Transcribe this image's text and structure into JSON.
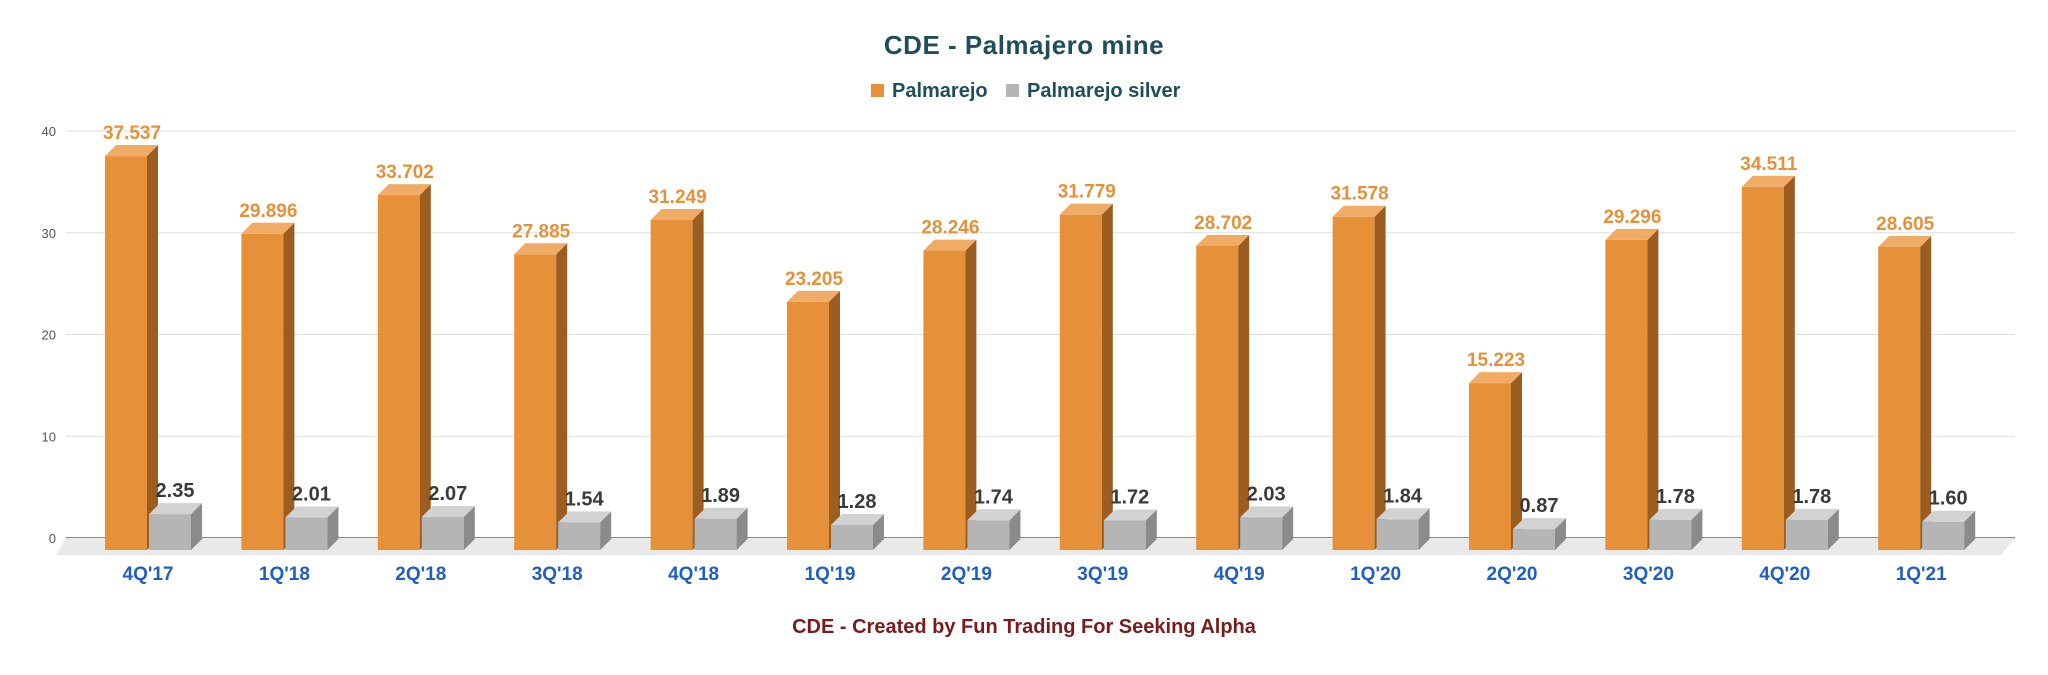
{
  "chart_data": {
    "type": "bar",
    "title": "CDE - Palmajero mine",
    "footer": "CDE - Created by Fun Trading  For Seeking Alpha",
    "categories": [
      "4Q'17",
      "1Q'18",
      "2Q'18",
      "3Q'18",
      "4Q'18",
      "1Q'19",
      "2Q'19",
      "3Q'19",
      "4Q'19",
      "1Q'20",
      "2Q'20",
      "3Q'20",
      "4Q'20",
      "1Q'21"
    ],
    "series": [
      {
        "name": "Palmarejo",
        "color": "#e6913a",
        "values": [
          37.537,
          29.896,
          33.702,
          27.885,
          31.249,
          23.205,
          28.246,
          31.779,
          28.702,
          31.578,
          15.223,
          29.296,
          34.511,
          28.605
        ],
        "labels": [
          "37.537",
          "29.896",
          "33.702",
          "27.885",
          "31.249",
          "23.205",
          "28.246",
          "31.779",
          "28.702",
          "31.578",
          "15.223",
          "29.296",
          "34.511",
          "28.605"
        ]
      },
      {
        "name": "Palmarejo silver",
        "color": "#b5b5b5",
        "values": [
          2.35,
          2.01,
          2.07,
          1.54,
          1.89,
          1.28,
          1.74,
          1.72,
          2.03,
          1.84,
          0.87,
          1.78,
          1.78,
          1.6
        ],
        "labels": [
          "2.35",
          "2.01",
          "2.07",
          "1.54",
          "1.89",
          "1.28",
          "1.74",
          "1.72",
          "2.03",
          "1.84",
          "0.87",
          "1.78",
          "1.78",
          "1.60"
        ]
      }
    ],
    "yticks": [
      "0",
      "10",
      "20",
      "30",
      "40"
    ],
    "ylim": [
      0,
      40
    ],
    "grid": true,
    "legend_position": "top-center"
  }
}
